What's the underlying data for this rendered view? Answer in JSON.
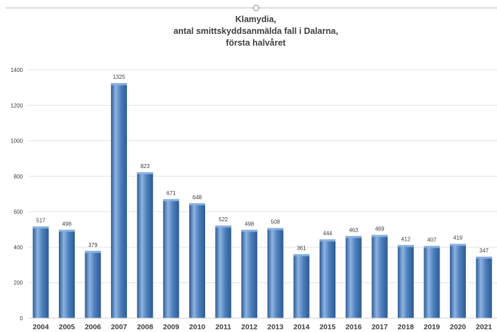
{
  "chart_data": {
    "type": "bar",
    "title_lines": [
      "Klamydia,",
      "antal smittskyddsanmälda fall i Dalarna,",
      "första halvåret"
    ],
    "categories": [
      "2004",
      "2005",
      "2006",
      "2007",
      "2008",
      "2009",
      "2010",
      "2011",
      "2012",
      "2013",
      "2014",
      "2015",
      "2016",
      "2017",
      "2018",
      "2019",
      "2020",
      "2021"
    ],
    "values": [
      517,
      498,
      379,
      1325,
      823,
      671,
      648,
      522,
      498,
      508,
      361,
      444,
      463,
      469,
      412,
      407,
      419,
      347
    ],
    "ylim": [
      0,
      1400
    ],
    "yticks": [
      0,
      200,
      400,
      600,
      800,
      1000,
      1200,
      1400
    ],
    "grid": true,
    "legend": "none",
    "bar_color": "#4f81bd",
    "bar_color_light": "#8db3e2",
    "bar_color_dark": "#2c5b93",
    "grid_color": "#e3e3e3",
    "text_color": "#404040"
  }
}
